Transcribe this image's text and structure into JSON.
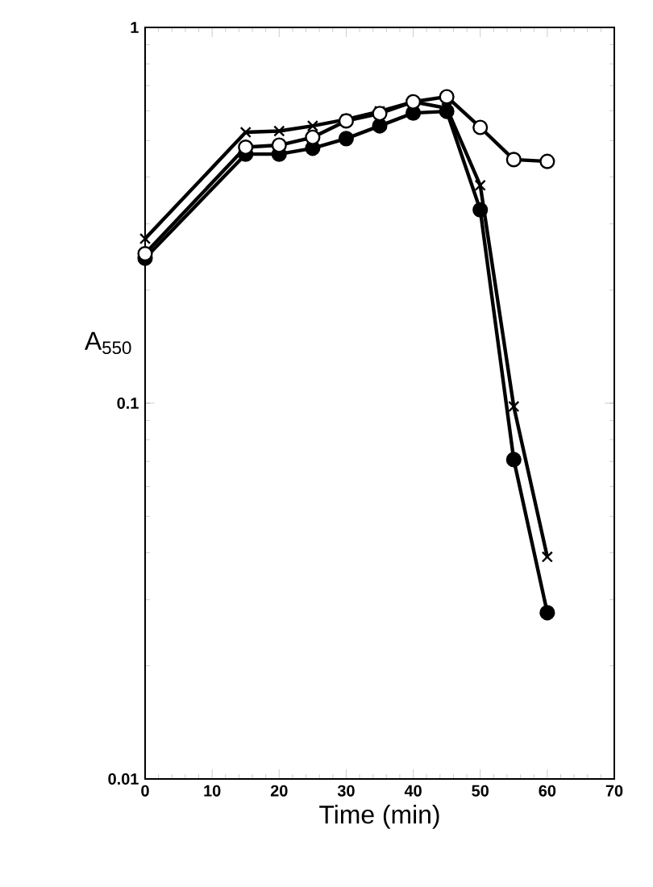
{
  "chart_data": {
    "type": "line",
    "xlabel": "Time (min)",
    "ylabel": "A$_{550}$",
    "x": [
      0,
      15,
      20,
      25,
      30,
      35,
      40,
      45,
      50,
      55,
      60
    ],
    "series": [
      {
        "color": "#000000",
        "marker": "circle",
        "values": [
          0.243,
          0.46,
          0.46,
          0.477,
          0.506,
          0.547,
          0.592,
          0.598,
          0.327,
          0.0708,
          0.0277
        ]
      },
      {
        "color": "#000000",
        "marker": "cross",
        "values": [
          0.274,
          0.526,
          0.53,
          0.547,
          0.569,
          0.598,
          0.634,
          0.61,
          0.38,
          0.098,
          0.039
        ]
      },
      {
        "color": "#ffffff",
        "marker": "circle",
        "values": [
          0.25,
          0.48,
          0.486,
          0.51,
          0.564,
          0.59,
          0.634,
          0.654,
          0.542,
          0.445,
          0.44
        ]
      }
    ],
    "log": "y",
    "xlim": [
      0,
      70
    ],
    "ylim": [
      0.01,
      1
    ],
    "xticks": [
      0,
      10,
      20,
      30,
      40,
      50,
      60,
      70
    ],
    "yticks": [
      0.01,
      0.1,
      1
    ],
    "grid": false,
    "line_style": "solid"
  }
}
